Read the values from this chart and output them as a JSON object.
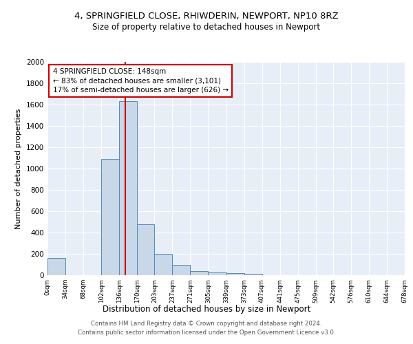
{
  "title1": "4, SPRINGFIELD CLOSE, RHIWDERIN, NEWPORT, NP10 8RZ",
  "title2": "Size of property relative to detached houses in Newport",
  "xlabel": "Distribution of detached houses by size in Newport",
  "ylabel": "Number of detached properties",
  "bar_edges": [
    0,
    34,
    68,
    102,
    136,
    170,
    203,
    237,
    271,
    305,
    339,
    373,
    407,
    441,
    475,
    509,
    542,
    576,
    610,
    644,
    678
  ],
  "bar_heights": [
    160,
    0,
    0,
    1090,
    1630,
    480,
    200,
    100,
    40,
    25,
    20,
    15,
    0,
    0,
    0,
    0,
    0,
    0,
    0,
    0
  ],
  "bar_color": "#c8d8e8",
  "bar_edgecolor": "#5588bb",
  "red_line_x": 148,
  "ylim": [
    0,
    2000
  ],
  "annotation_text": "4 SPRINGFIELD CLOSE: 148sqm\n← 83% of detached houses are smaller (3,101)\n17% of semi-detached houses are larger (626) →",
  "annotation_box_color": "#ffffff",
  "annotation_box_edgecolor": "#cc0000",
  "footer_text": "Contains HM Land Registry data © Crown copyright and database right 2024.\nContains public sector information licensed under the Open Government Licence v3.0.",
  "tick_labels": [
    "0sqm",
    "34sqm",
    "68sqm",
    "102sqm",
    "136sqm",
    "170sqm",
    "203sqm",
    "237sqm",
    "271sqm",
    "305sqm",
    "339sqm",
    "373sqm",
    "407sqm",
    "441sqm",
    "475sqm",
    "509sqm",
    "542sqm",
    "576sqm",
    "610sqm",
    "644sqm",
    "678sqm"
  ],
  "plot_bg_color": "#e8eef8"
}
